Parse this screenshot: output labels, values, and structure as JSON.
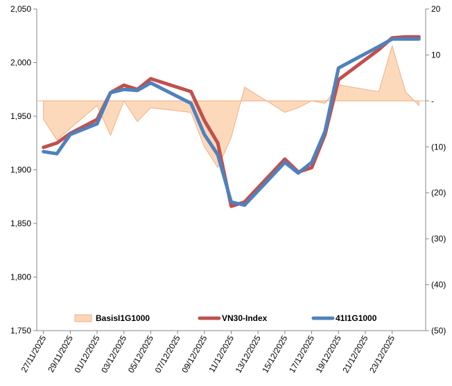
{
  "chart_data": {
    "type": "line",
    "title": "",
    "x": [
      "27/11/2025",
      "28/11/2025",
      "29/11/2025",
      "01/12/2025",
      "02/12/2025",
      "03/12/2025",
      "04/12/2025",
      "05/12/2025",
      "08/12/2025",
      "09/12/2025",
      "10/12/2025",
      "11/12/2025",
      "12/12/2025",
      "15/12/2025",
      "16/12/2025",
      "17/12/2025",
      "18/12/2025",
      "19/12/2025",
      "22/12/2025",
      "23/12/2025",
      "24/12/2025",
      "25/12/2025"
    ],
    "x_tick_labels": [
      "27/11/2025",
      "29/11/2025",
      "01/12/2025",
      "03/12/2025",
      "05/12/2025",
      "07/12/2025",
      "09/12/2025",
      "11/12/2025",
      "13/12/2025",
      "15/12/2025",
      "17/12/2025",
      "19/12/2025",
      "21/12/2025",
      "23/12/2025"
    ],
    "x_day_index": [
      0,
      1,
      2,
      4,
      5,
      6,
      7,
      8,
      11,
      12,
      13,
      14,
      15,
      18,
      19,
      20,
      21,
      22,
      25,
      26,
      27,
      28
    ],
    "x_tick_day_index": [
      0,
      2,
      4,
      6,
      8,
      10,
      12,
      14,
      16,
      18,
      20,
      22,
      24,
      26
    ],
    "y_left": {
      "range": [
        1750,
        2050
      ],
      "ticks": [
        "1,750",
        "1,800",
        "1,850",
        "1,900",
        "1,950",
        "2,000",
        "2,050"
      ],
      "tick_values": [
        1750,
        1800,
        1850,
        1900,
        1950,
        2000,
        2050
      ]
    },
    "y_right": {
      "range": [
        -50,
        20
      ],
      "ticks": [
        "(50)",
        "(40)",
        "(30)",
        "(20)",
        "(10)",
        "-",
        "10",
        "20"
      ],
      "tick_values": [
        -50,
        -40,
        -30,
        -20,
        -10,
        0,
        10,
        20
      ]
    },
    "series": [
      {
        "name": "BasisI1G1000",
        "type": "area",
        "axis": "right",
        "fill": "#fcd5b4",
        "stroke": "#f0b088",
        "values": [
          -4,
          -8.5,
          -6,
          -1,
          -7.5,
          0,
          -4.5,
          -1.5,
          -2.5,
          -10,
          -14.5,
          -8,
          3,
          -2.5,
          -1.5,
          0,
          -0.5,
          3.5,
          2,
          12,
          2,
          -1
        ]
      },
      {
        "name": "VN30-Index",
        "type": "line",
        "axis": "left",
        "color": "#c0504d",
        "values": [
          1921,
          1925,
          1934,
          1947,
          1972,
          1979,
          1975,
          1985,
          1973,
          1946,
          1925,
          1866,
          1870,
          1910,
          1898,
          1902,
          1933,
          1984,
          2012,
          2023,
          2024,
          2024
        ]
      },
      {
        "name": "41I1G1000",
        "type": "line",
        "axis": "left",
        "color": "#4f81bd",
        "values": [
          1917,
          1915,
          1933,
          1943,
          1972,
          1975,
          1974,
          1981,
          1962,
          1933,
          1914,
          1870,
          1867,
          1907,
          1897,
          1907,
          1936,
          1995,
          2015,
          2022,
          2022,
          2022
        ]
      }
    ],
    "legend": {
      "position": "bottom-inside",
      "entries": [
        "BasisI1G1000",
        "VN30-Index",
        "41I1G1000"
      ]
    },
    "grid": false
  }
}
